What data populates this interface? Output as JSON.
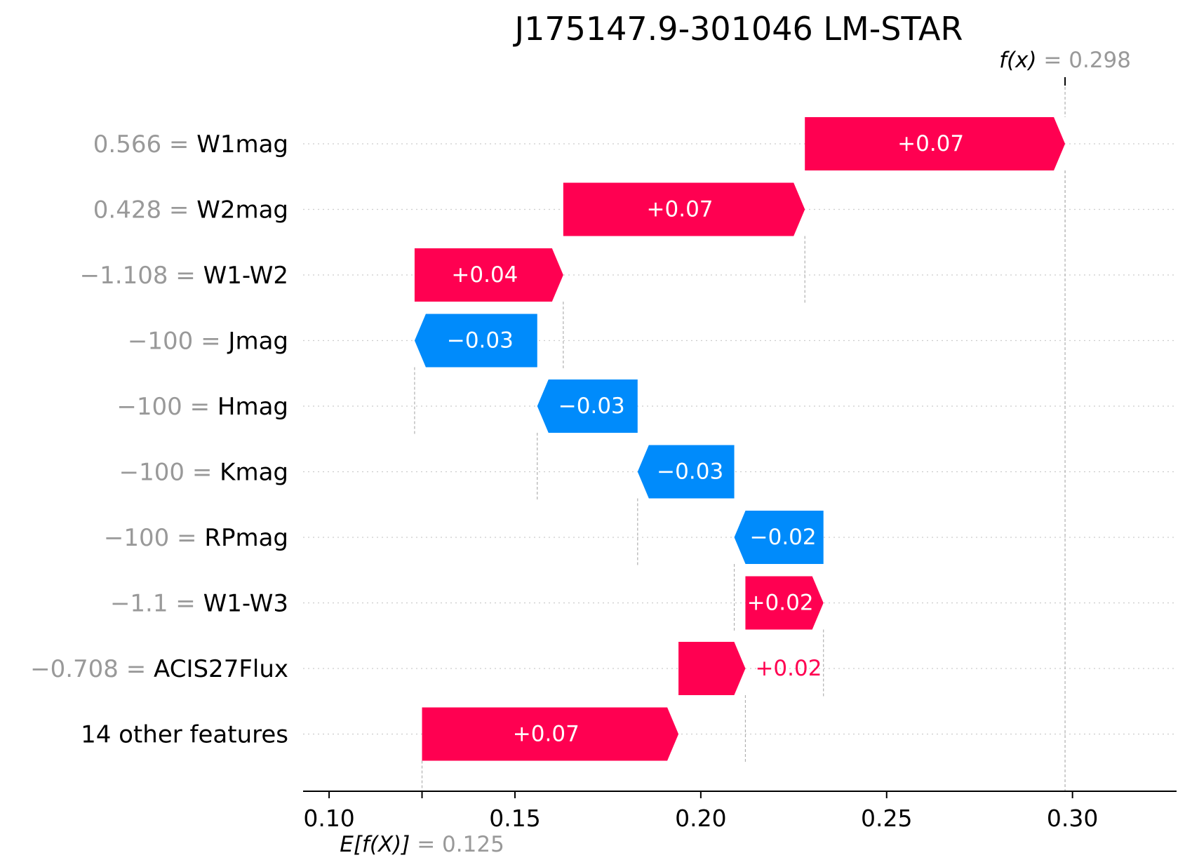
{
  "chart_data": {
    "type": "waterfall",
    "title": "J175147.9-301046 LM-STAR",
    "xlim": [
      0.093,
      0.328
    ],
    "xticks": [
      {
        "value": 0.1,
        "label": "0.10"
      },
      {
        "value": 0.15,
        "label": "0.15"
      },
      {
        "value": 0.2,
        "label": "0.20"
      },
      {
        "value": 0.25,
        "label": "0.25"
      },
      {
        "value": 0.3,
        "label": "0.30"
      }
    ],
    "base_value": {
      "label_prefix": "E[f(X)]",
      "value": 0.125,
      "value_text": "= 0.125"
    },
    "output_value": {
      "label_prefix": "f(x)",
      "value": 0.298,
      "value_text": "= 0.298"
    },
    "features": [
      {
        "value_text": "0.566 =",
        "name": "W1mag",
        "start": 0.228,
        "end": 0.298,
        "label": "+0.07",
        "label_outside": false
      },
      {
        "value_text": "0.428 =",
        "name": "W2mag",
        "start": 0.163,
        "end": 0.228,
        "label": "+0.07",
        "label_outside": false
      },
      {
        "value_text": "−1.108 =",
        "name": "W1-W2",
        "start": 0.123,
        "end": 0.163,
        "label": "+0.04",
        "label_outside": false
      },
      {
        "value_text": "−100 =",
        "name": "Jmag",
        "start": 0.156,
        "end": 0.123,
        "label": "−0.03",
        "label_outside": false
      },
      {
        "value_text": "−100 =",
        "name": "Hmag",
        "start": 0.183,
        "end": 0.156,
        "label": "−0.03",
        "label_outside": false
      },
      {
        "value_text": "−100 =",
        "name": "Kmag",
        "start": 0.209,
        "end": 0.183,
        "label": "−0.03",
        "label_outside": false
      },
      {
        "value_text": "−100 =",
        "name": "RPmag",
        "start": 0.233,
        "end": 0.209,
        "label": "−0.02",
        "label_outside": false
      },
      {
        "value_text": "−1.1 =",
        "name": "W1-W3",
        "start": 0.212,
        "end": 0.233,
        "label": "+0.02",
        "label_outside": false
      },
      {
        "value_text": "−0.708 =",
        "name": "ACIS27Flux",
        "start": 0.194,
        "end": 0.212,
        "label": "+0.02",
        "label_outside": true
      },
      {
        "value_text": "",
        "name": "14 other features",
        "start": 0.125,
        "end": 0.194,
        "label": "+0.07",
        "label_outside": false
      }
    ],
    "colors": {
      "positive": "#ff0051",
      "negative": "#008bfb"
    }
  }
}
